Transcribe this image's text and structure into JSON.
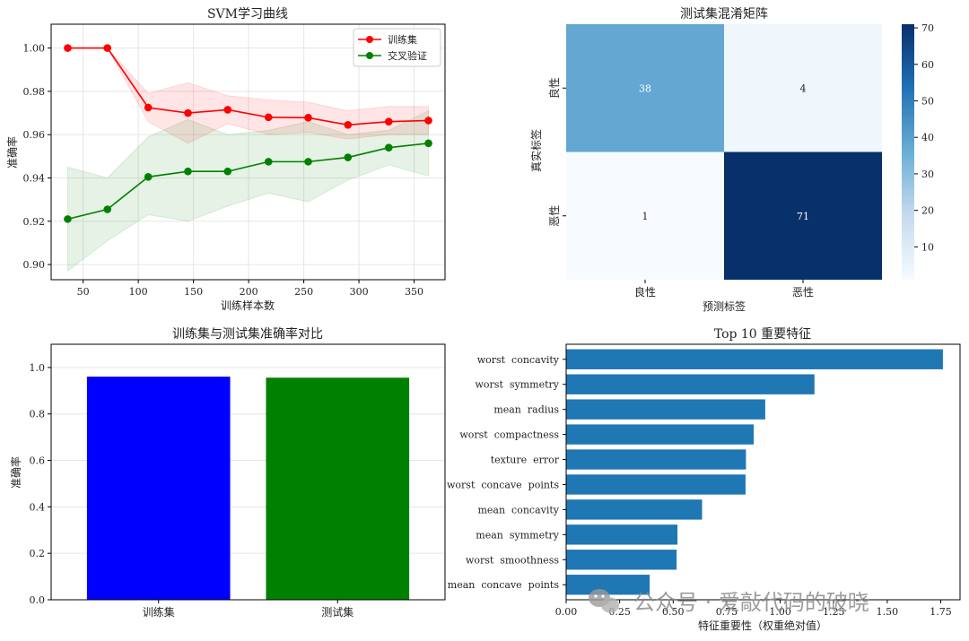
{
  "chart_data": [
    {
      "type": "line",
      "title": "SVM学习曲线",
      "xlabel": "训练样本数",
      "ylabel": "准确率",
      "x": [
        36,
        72,
        109,
        145,
        181,
        218,
        254,
        290,
        327,
        363
      ],
      "xlim": [
        21,
        378
      ],
      "ylim": [
        0.893,
        1.011
      ],
      "xticks": [
        50,
        100,
        150,
        200,
        250,
        300,
        350
      ],
      "yticks": [
        0.9,
        0.92,
        0.94,
        0.96,
        0.98,
        1.0
      ],
      "grid": true,
      "legend": "top-right",
      "series": [
        {
          "name": "训练集",
          "color": "#ff0000",
          "values": [
            1.0,
            1.0,
            0.9725,
            0.97,
            0.9715,
            0.968,
            0.9678,
            0.9645,
            0.966,
            0.9665
          ],
          "lower": [
            1.0,
            1.0,
            0.966,
            0.956,
            0.965,
            0.96,
            0.961,
            0.958,
            0.96,
            0.96
          ],
          "upper": [
            1.0,
            1.0,
            0.979,
            0.984,
            0.978,
            0.976,
            0.975,
            0.971,
            0.973,
            0.973
          ]
        },
        {
          "name": "交叉验证",
          "color": "#008000",
          "values": [
            0.921,
            0.9255,
            0.9405,
            0.943,
            0.943,
            0.9475,
            0.9475,
            0.9495,
            0.954,
            0.956
          ],
          "lower": [
            0.897,
            0.911,
            0.923,
            0.92,
            0.927,
            0.933,
            0.929,
            0.939,
            0.946,
            0.941
          ],
          "upper": [
            0.945,
            0.94,
            0.959,
            0.967,
            0.96,
            0.962,
            0.966,
            0.96,
            0.962,
            0.971
          ]
        }
      ]
    },
    {
      "type": "heatmap",
      "title": "测试集混淆矩阵",
      "xlabel": "预测标签",
      "ylabel": "真实标签",
      "xcategories": [
        "良性",
        "恶性"
      ],
      "ycategories": [
        "良性",
        "恶性"
      ],
      "values": [
        [
          38,
          4
        ],
        [
          1,
          71
        ]
      ],
      "colorbar_ticks": [
        10,
        20,
        30,
        40,
        50,
        60,
        70
      ],
      "colorbar_range": [
        1,
        71
      ],
      "colormap": "Blues"
    },
    {
      "type": "bar",
      "title": "训练集与测试集准确率对比",
      "xlabel": "",
      "ylabel": "准确率",
      "categories": [
        "训练集",
        "测试集"
      ],
      "values": [
        0.9604,
        0.9561
      ],
      "colors": [
        "#0000ff",
        "#008000"
      ],
      "ylim": [
        0,
        1.1
      ],
      "yticks": [
        0.0,
        0.2,
        0.4,
        0.6,
        0.8,
        1.0
      ],
      "grid": true
    },
    {
      "type": "bar",
      "orientation": "horizontal",
      "title": "Top  10  重要特征",
      "xlabel": "特征重要性（权重绝对值）",
      "ylabel": "",
      "categories": [
        "worst  concavity",
        "worst  symmetry",
        "mean  radius",
        "worst  compactness",
        "texture  error",
        "worst  concave  points",
        "mean  concavity",
        "mean  symmetry",
        "worst  smoothness",
        "mean  concave  points"
      ],
      "values": [
        1.76,
        1.16,
        0.93,
        0.876,
        0.84,
        0.838,
        0.635,
        0.52,
        0.516,
        0.39
      ],
      "color": "#1f77b4",
      "xlim": [
        0,
        1.84
      ],
      "xticks": [
        0.0,
        0.25,
        0.5,
        0.75,
        1.0,
        1.25,
        1.5,
        1.75
      ]
    }
  ],
  "watermark": "公众号 · 爱敲代码的破晓",
  "watermark_icon": "wechat-icon"
}
